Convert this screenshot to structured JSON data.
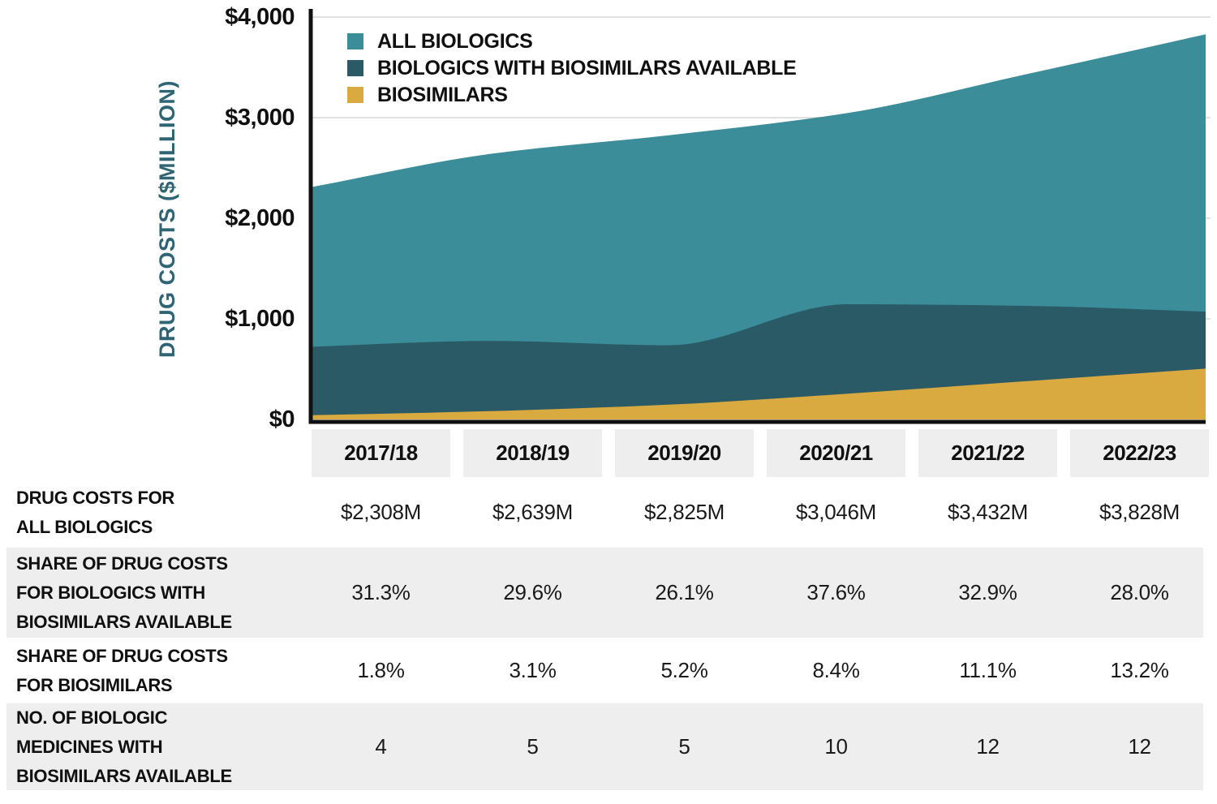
{
  "chart": {
    "y_axis_title": "DRUG COSTS ($MILLION)",
    "y_ticks": [
      "$4,000",
      "$3,000",
      "$2,000",
      "$1,000",
      "$0"
    ],
    "legend": [
      {
        "label": "ALL BIOLOGICS",
        "color": "#3b8d99"
      },
      {
        "label": "BIOLOGICS WITH BIOSIMILARS AVAILABLE",
        "color": "#2a5a66"
      },
      {
        "label": "BIOSIMILARS",
        "color": "#d9aa40"
      }
    ]
  },
  "chart_data": {
    "type": "area",
    "title": "",
    "xlabel": "",
    "ylabel": "DRUG COSTS ($MILLION)",
    "x_categories": [
      "2017/18",
      "2018/19",
      "2019/20",
      "2020/21",
      "2021/22",
      "2022/23"
    ],
    "ylim": [
      0,
      4000
    ],
    "y_tick_values": [
      0,
      1000,
      2000,
      3000,
      4000
    ],
    "grid": "horizontal",
    "legend_position": "top-left",
    "overlay_note": "series are absolute values layered front-to-back, not additive stacks",
    "series": [
      {
        "name": "ALL BIOLOGICS",
        "color": "#3b8d99",
        "values": [
          2308,
          2639,
          2825,
          3046,
          3432,
          3828
        ]
      },
      {
        "name": "BIOLOGICS WITH BIOSIMILARS AVAILABLE",
        "color": "#2a5a66",
        "values": [
          722,
          781,
          737,
          1145,
          1129,
          1072
        ]
      },
      {
        "name": "BIOSIMILARS",
        "color": "#d9aa40",
        "values": [
          42,
          82,
          147,
          256,
          381,
          505
        ]
      }
    ]
  },
  "table": {
    "columns": [
      "2017/18",
      "2018/19",
      "2019/20",
      "2020/21",
      "2021/22",
      "2022/23"
    ],
    "rows": [
      {
        "label": "DRUG COSTS FOR\nALL BIOLOGICS",
        "values": [
          "$2,308M",
          "$2,639M",
          "$2,825M",
          "$3,046M",
          "$3,432M",
          "$3,828M"
        ]
      },
      {
        "label": "SHARE OF DRUG COSTS\nFOR BIOLOGICS WITH\nBIOSIMILARS AVAILABLE",
        "values": [
          "31.3%",
          "29.6%",
          "26.1%",
          "37.6%",
          "32.9%",
          "28.0%"
        ]
      },
      {
        "label": "SHARE OF DRUG COSTS\nFOR BIOSIMILARS",
        "values": [
          "1.8%",
          "3.1%",
          "5.2%",
          "8.4%",
          "11.1%",
          "13.2%"
        ]
      },
      {
        "label": "NO. OF BIOLOGIC\nMEDICINES WITH\nBIOSIMILARS AVAILABLE",
        "values": [
          "4",
          "5",
          "5",
          "10",
          "12",
          "12"
        ]
      }
    ]
  },
  "colors": {
    "axis": "#101010",
    "gridline": "#e1e1e1",
    "table_band": "#eeeeee",
    "axis_title_teal": "#2e6474"
  }
}
